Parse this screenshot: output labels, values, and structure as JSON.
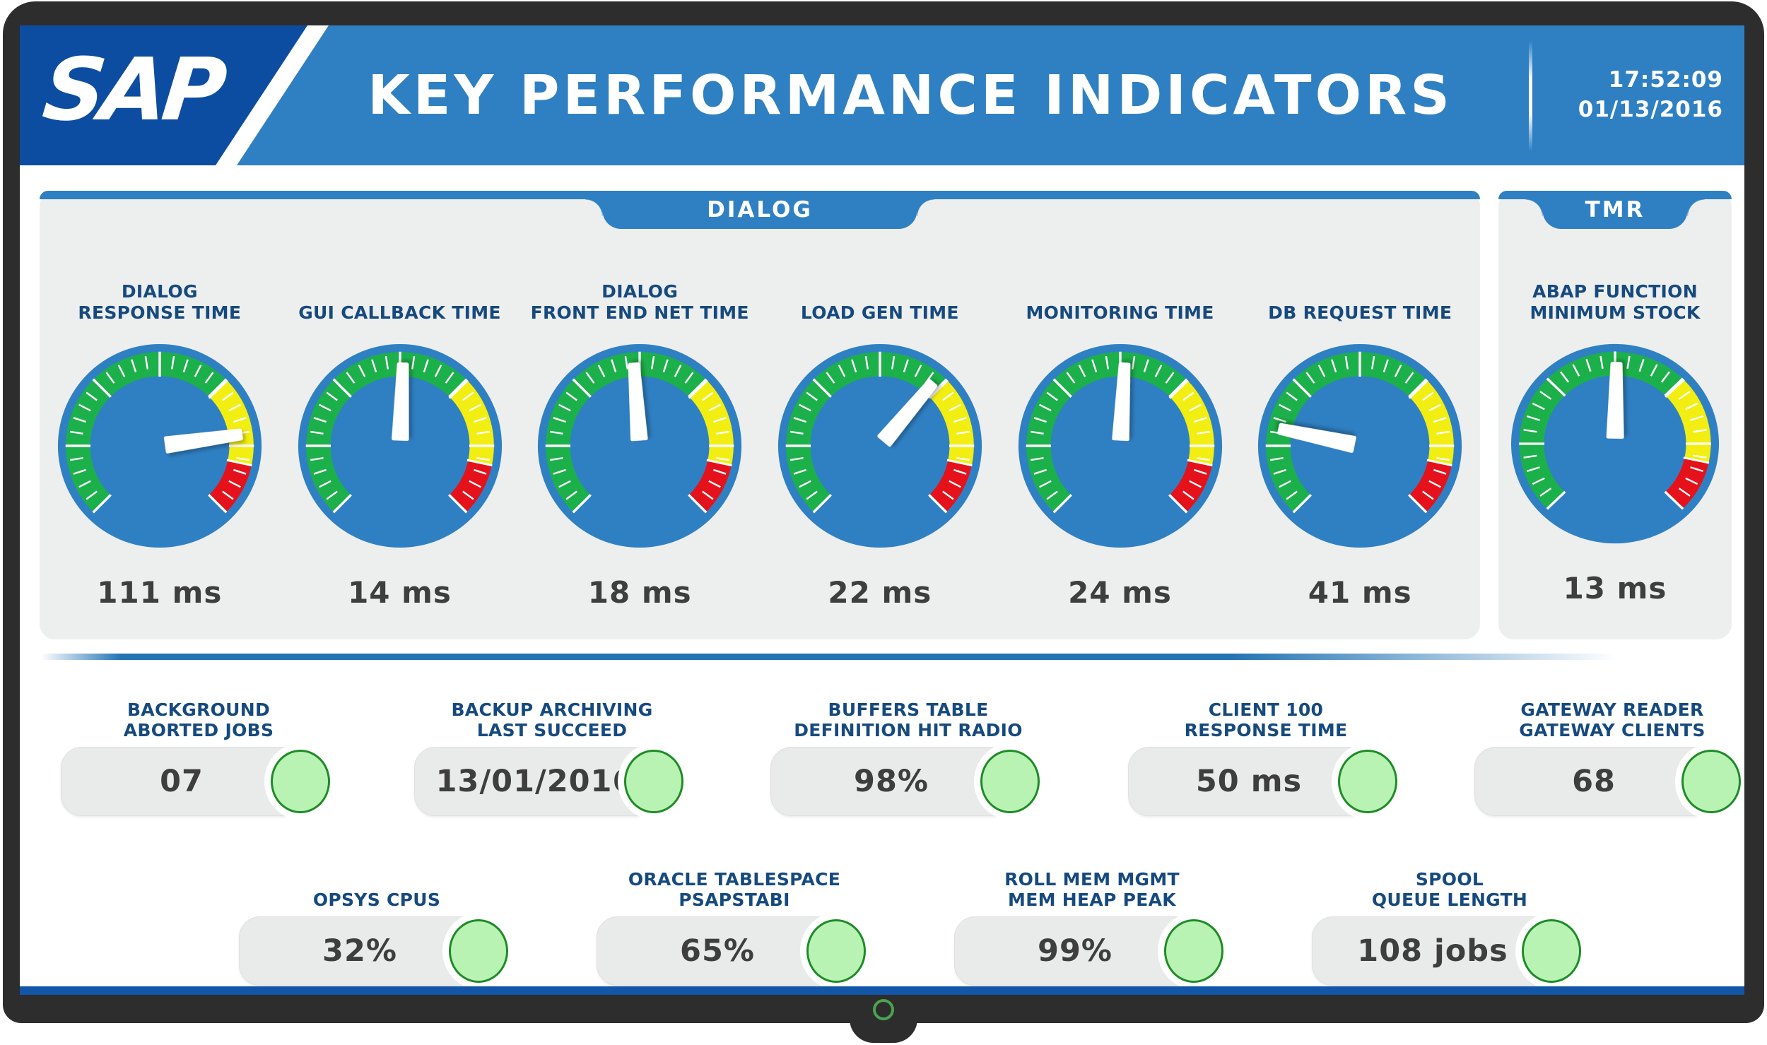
{
  "header": {
    "logo_text": "SAP",
    "title": "KEY PERFORMANCE INDICATORS",
    "time": "17:52:09",
    "date": "01/13/2016"
  },
  "colors": {
    "brand_navy": "#0c4da2",
    "accent_blue": "#2f80c3",
    "panel_gray": "#edeeee",
    "gauge_green": "#1cb04a",
    "gauge_yellow": "#f2ee12",
    "gauge_red": "#e5121b",
    "needle_white": "#ffffff",
    "status_green_fill": "#b9f3b3",
    "status_green_border": "#1f8b28",
    "label_navy": "#164a7e",
    "value_gray": "#3e3e3e",
    "divider_blue": "#2273b4",
    "bottom_bar_blue": "#1156a7"
  },
  "chart_data": {
    "type": "gauge",
    "description": "SAP key performance indicator dashboard: seven radial speedometer gauges (green/yellow/red bands, white needle) plus nine KPI pill tiles with green status lights",
    "gauge_scale": {
      "start_deg": 225,
      "end_deg": -45,
      "segments": [
        {
          "color": "green",
          "from_deg": 225,
          "to_deg": 44
        },
        {
          "color": "yellow",
          "from_deg": 44,
          "to_deg": -12
        },
        {
          "color": "red",
          "from_deg": -12,
          "to_deg": -45
        }
      ]
    },
    "groups": [
      {
        "tab": "DIALOG",
        "gauges": [
          {
            "label": [
              "DIALOG",
              "RESPONSE TIME"
            ],
            "value": "111 ms",
            "needle_deg": 8
          },
          {
            "label": [
              "GUI CALLBACK TIME"
            ],
            "value": "14 ms",
            "needle_deg": 88
          },
          {
            "label": [
              "DIALOG",
              "FRONT END NET TIME"
            ],
            "value": "18 ms",
            "needle_deg": 94
          },
          {
            "label": [
              "LOAD GEN TIME"
            ],
            "value": "22 ms",
            "needle_deg": 50
          },
          {
            "label": [
              "MONITORING TIME"
            ],
            "value": "24 ms",
            "needle_deg": 87
          },
          {
            "label": [
              "DB REQUEST TIME"
            ],
            "value": "41 ms",
            "needle_deg": 168
          }
        ]
      },
      {
        "tab": "TMR",
        "gauges": [
          {
            "label": [
              "ABAP FUNCTION",
              "MINIMUM STOCK"
            ],
            "value": "13 ms",
            "needle_deg": 89
          }
        ]
      }
    ],
    "kpi_tiles": {
      "row1": [
        {
          "label": [
            "BACKGROUND",
            "ABORTED JOBS"
          ],
          "value": "07",
          "status": "green"
        },
        {
          "label": [
            "BACKUP ARCHIVING",
            "LAST SUCCEED"
          ],
          "value": "13/01/2016",
          "status": "green"
        },
        {
          "label": [
            "BUFFERS TABLE",
            "DEFINITION HIT RADIO"
          ],
          "value": "98%",
          "status": "green"
        },
        {
          "label": [
            "CLIENT 100",
            "RESPONSE TIME"
          ],
          "value": "50 ms",
          "status": "green"
        },
        {
          "label": [
            "GATEWAY READER",
            "GATEWAY CLIENTS"
          ],
          "value": "68",
          "status": "green"
        }
      ],
      "row2": [
        {
          "label": [
            "OPSYS CPUS"
          ],
          "value": "32%",
          "status": "green"
        },
        {
          "label": [
            "ORACLE TABLESPACE",
            "PSAPSTABI"
          ],
          "value": "65%",
          "status": "green"
        },
        {
          "label": [
            "ROLL MEM MGMT",
            "MEM HEAP PEAK"
          ],
          "value": "99%",
          "status": "green"
        },
        {
          "label": [
            "SPOOL",
            "QUEUE LENGTH"
          ],
          "value": "108 jobs",
          "status": "green"
        }
      ]
    }
  }
}
